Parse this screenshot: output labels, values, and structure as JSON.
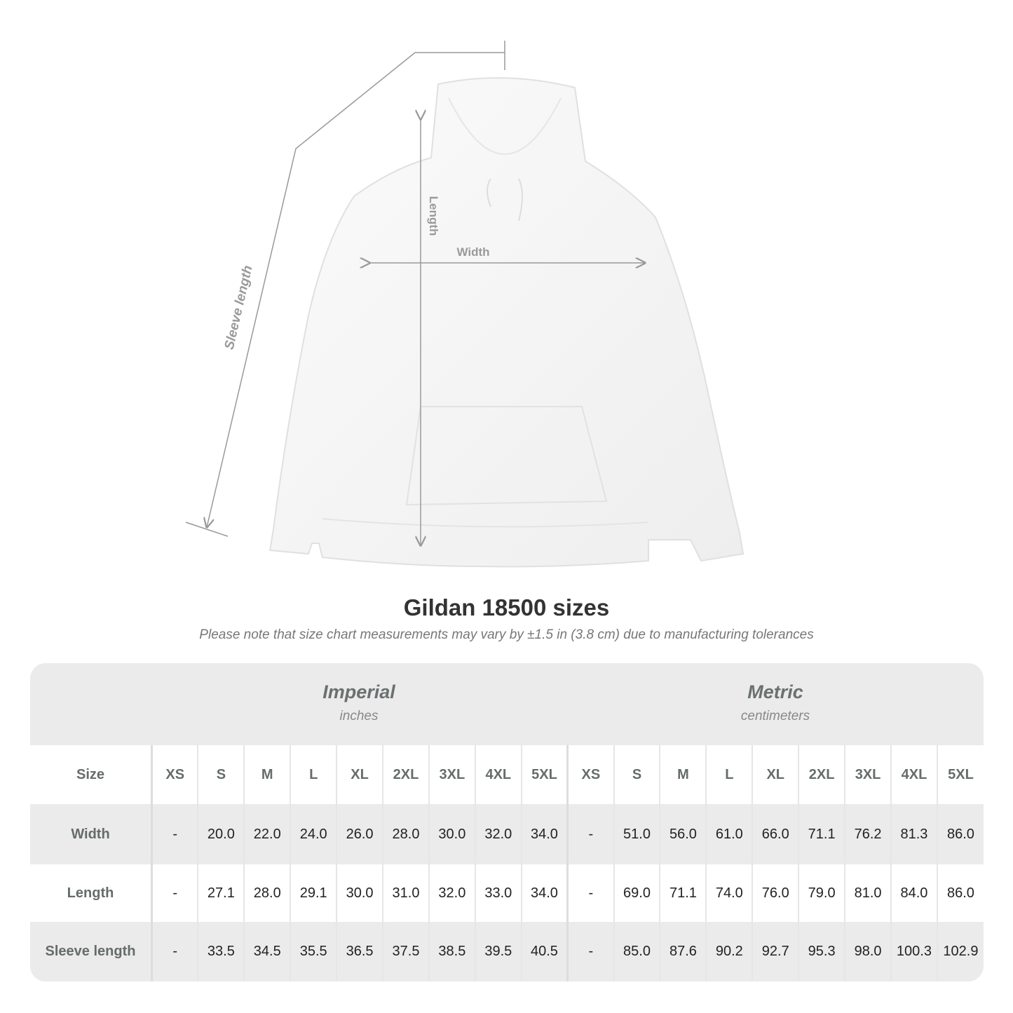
{
  "figure": {
    "labels": {
      "sleeve": "Sleeve length",
      "length": "Length",
      "width": "Width"
    }
  },
  "title": "Gildan 18500 sizes",
  "subtitle": "Please note that size chart measurements may vary by ±1.5 in (3.8 cm) due to manufacturing tolerances",
  "imperial": {
    "name": "Imperial",
    "unit": "inches"
  },
  "metric": {
    "name": "Metric",
    "unit": "centimeters"
  },
  "size_label": "Size",
  "sizes": [
    "XS",
    "S",
    "M",
    "L",
    "XL",
    "2XL",
    "3XL",
    "4XL",
    "5XL"
  ],
  "rows": [
    {
      "label": "Width",
      "imperial": [
        "-",
        "20.0",
        "22.0",
        "24.0",
        "26.0",
        "28.0",
        "30.0",
        "32.0",
        "34.0"
      ],
      "metric": [
        "-",
        "51.0",
        "56.0",
        "61.0",
        "66.0",
        "71.1",
        "76.2",
        "81.3",
        "86.0"
      ]
    },
    {
      "label": "Length",
      "imperial": [
        "-",
        "27.1",
        "28.0",
        "29.1",
        "30.0",
        "31.0",
        "32.0",
        "33.0",
        "34.0"
      ],
      "metric": [
        "-",
        "69.0",
        "71.1",
        "74.0",
        "76.0",
        "79.0",
        "81.0",
        "84.0",
        "86.0"
      ]
    },
    {
      "label": "Sleeve length",
      "imperial": [
        "-",
        "33.5",
        "34.5",
        "35.5",
        "36.5",
        "37.5",
        "38.5",
        "39.5",
        "40.5"
      ],
      "metric": [
        "-",
        "85.0",
        "87.6",
        "90.2",
        "92.7",
        "95.3",
        "98.0",
        "100.3",
        "102.9"
      ]
    }
  ]
}
